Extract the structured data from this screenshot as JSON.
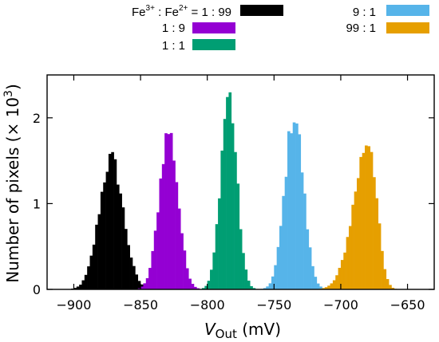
{
  "chart_data": {
    "type": "bar",
    "subtype": "histogram",
    "xlabel": {
      "main": "V",
      "sub": "Out",
      "unit": " (mV)"
    },
    "ylabel": "Number of pixels (× 10",
    "ylabel_sup": "3",
    "ylabel_close": ")",
    "xlim": [
      -920,
      -630
    ],
    "ylim": [
      0,
      2.5
    ],
    "x_ticks": [
      -900,
      -850,
      -800,
      -750,
      -700,
      -650
    ],
    "x_tick_labels": [
      "−900",
      "−850",
      "−800",
      "−750",
      "−700",
      "−650"
    ],
    "y_ticks": [
      0,
      1,
      2
    ],
    "y_tick_labels": [
      "0",
      "1",
      "2"
    ],
    "bin_width": 2,
    "legend_position": "top",
    "legend_prefix": {
      "a": "Fe",
      "a_sup": "3+",
      "sep": " : Fe",
      "b_sup": "2+",
      "eq": " = "
    },
    "series": [
      {
        "name": "1 : 99",
        "color": "#000000",
        "center": -872,
        "peak": 1.52,
        "sigma_left": 9,
        "sigma_right": 9
      },
      {
        "name": "1 : 9",
        "color": "#9400d3",
        "center": -829,
        "peak": 1.84,
        "sigma_left": 7,
        "sigma_right": 7
      },
      {
        "name": "1 : 1",
        "color": "#009e73",
        "center": -784,
        "peak": 2.27,
        "sigma_left": 6,
        "sigma_right": 6
      },
      {
        "name": "9 : 1",
        "color": "#56b4e9",
        "center": -735,
        "peak": 2.03,
        "sigma_left": 7,
        "sigma_right": 7
      },
      {
        "name": "99 : 1",
        "color": "#e69f00",
        "center": -679,
        "peak": 1.74,
        "sigma_left": 11,
        "sigma_right": 6
      }
    ]
  }
}
